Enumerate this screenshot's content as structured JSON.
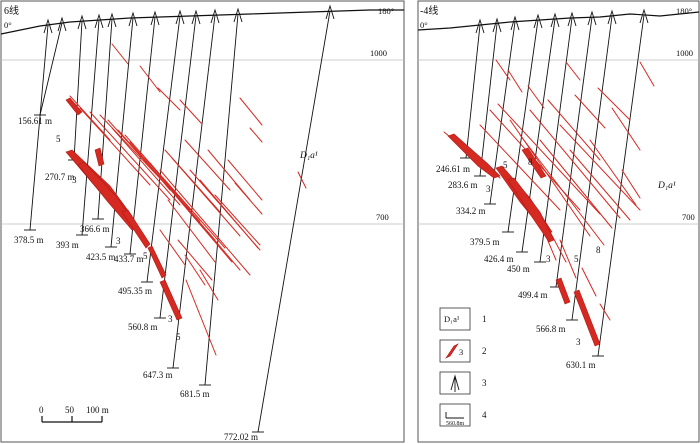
{
  "left": {
    "title": "6线",
    "angle_left": "0°",
    "angle_right": "180°",
    "elev_upper": "1000",
    "elev_lower": "700",
    "unit_label": "D₁a¹",
    "depths": [
      "156.61 m",
      "270.7 m",
      "378.5 m",
      "393 m",
      "366.6 m",
      "423.5 m",
      "433.7 m",
      "495.35 m",
      "560.8 m",
      "647.3 m",
      "681.5 m",
      "772.02 m"
    ],
    "vein_labels": [
      "5",
      "3",
      "3",
      "5",
      "3",
      "5"
    ],
    "scale": {
      "zero": "0",
      "mid": "50",
      "end": "100 m"
    }
  },
  "right": {
    "title": "-4线",
    "angle_left": "0°",
    "angle_right": "180°",
    "elev_upper": "1000",
    "elev_lower": "700",
    "unit_label": "D₁a¹",
    "depths": [
      "246.61 m",
      "283.6 m",
      "334.2 m",
      "379.5 m",
      "426.4 m",
      "450 m",
      "499.4 m",
      "566.8 m",
      "630.1 m"
    ],
    "vein_labels": [
      "5",
      "8",
      "3",
      "3",
      "5",
      "8",
      "3"
    ]
  },
  "legend": {
    "items": [
      {
        "symbol": "D₁a¹",
        "label": "1"
      },
      {
        "symbol": "3",
        "label": "2"
      },
      {
        "symbol": "",
        "label": "3"
      },
      {
        "symbol": "560.8m",
        "label": "4"
      }
    ]
  },
  "colors": {
    "vein": "#d42a22",
    "frame": "#555555"
  }
}
